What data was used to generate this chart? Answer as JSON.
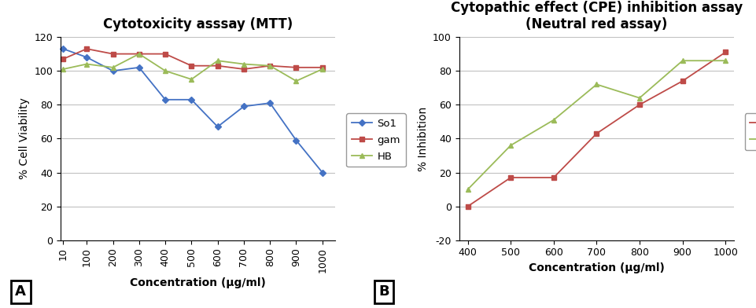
{
  "chart_A": {
    "title": "Cytotoxicity asssay (MTT)",
    "xlabel": "Concentration (μg/ml)",
    "ylabel": "% Cell Viability",
    "x": [
      10,
      100,
      200,
      300,
      400,
      500,
      600,
      700,
      800,
      900,
      1000
    ],
    "So1": [
      113,
      108,
      100,
      102,
      83,
      83,
      67,
      79,
      81,
      59,
      40
    ],
    "gam": [
      107,
      113,
      110,
      110,
      110,
      103,
      103,
      101,
      103,
      102,
      102
    ],
    "HB": [
      101,
      104,
      102,
      110,
      100,
      95,
      106,
      104,
      103,
      94,
      101
    ],
    "So1_color": "#4472C4",
    "gam_color": "#BE4B48",
    "HB_color": "#9BBB59",
    "ylim": [
      0,
      120
    ],
    "yticks": [
      0,
      20,
      40,
      60,
      80,
      100,
      120
    ],
    "label_A": "A"
  },
  "chart_B": {
    "title1": "Cytopathic effect (CPE) inhibition assay",
    "title2": "(Neutral red assay)",
    "xlabel": "Concentration (μg/ml)",
    "ylabel": "% Inhibition",
    "x": [
      400,
      500,
      600,
      700,
      800,
      900,
      1000
    ],
    "gam": [
      0,
      17,
      17,
      43,
      60,
      74,
      91
    ],
    "HB": [
      10,
      36,
      51,
      72,
      64,
      86,
      86
    ],
    "gam_color": "#BE4B48",
    "HB_color": "#9BBB59",
    "ylim": [
      -20,
      100
    ],
    "yticks": [
      -20,
      0,
      20,
      40,
      60,
      80,
      100
    ],
    "label_B": "B"
  },
  "bg_color": "#FFFFFF",
  "grid_color": "#C0C0C0",
  "title_fontsize": 12,
  "label_fontsize": 10,
  "tick_fontsize": 9,
  "legend_fontsize": 9.5
}
